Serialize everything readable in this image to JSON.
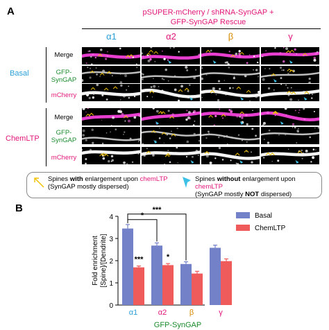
{
  "panel_a": {
    "letter": "A",
    "title_line1": "pSUPER-mCherry / shRNA-SynGAP +",
    "title_line2": "GFP-SynGAP Rescue",
    "isoforms": [
      "α1",
      "α2",
      "β",
      "γ"
    ],
    "groups": [
      {
        "label": "Basal",
        "rows": [
          "Merge",
          "GFP-\nSynGAP",
          "mCherry"
        ]
      },
      {
        "label": "ChemLTP",
        "rows": [
          "Merge",
          "GFP-\nSynGAP",
          "mCherry"
        ]
      }
    ],
    "row_labels": {
      "merge": "Merge",
      "gfp_line1": "GFP-",
      "gfp_line2": "SynGAP",
      "mcherry": "mCherry"
    },
    "legend": {
      "left_pre": "Spines ",
      "left_bold": "with",
      "left_mid": " enlargement upon ",
      "left_colored": "chemLTP",
      "left_line2": "(SynGAP mostly dispersed)",
      "right_pre": "Spines ",
      "right_bold": "without",
      "right_mid": " enlargement upon ",
      "right_colored": "chemLTP",
      "right_line2_pre": "(SynGAP mostly ",
      "right_line2_bold": "NOT",
      "right_line2_post": " dispersed)"
    },
    "colors": {
      "magenta": "#e2167a",
      "green": "#1a8a2e",
      "cyan": "#2a9fd6",
      "arrow_yellow": "#f2c200"
    }
  },
  "panel_b": {
    "letter": "B",
    "chart_data": {
      "type": "bar",
      "categories": [
        "α1",
        "α2",
        "β",
        "γ"
      ],
      "series": [
        {
          "name": "Basal",
          "color": "#7382c8",
          "values": [
            3.45,
            2.68,
            1.85,
            2.58
          ],
          "errors": [
            0.18,
            0.12,
            0.1,
            0.12
          ]
        },
        {
          "name": "ChemLTP",
          "color": "#ef5b5b",
          "values": [
            1.7,
            1.8,
            1.42,
            1.98
          ],
          "errors": [
            0.06,
            0.07,
            0.1,
            0.1
          ]
        }
      ],
      "ylabel_line1": "Fold enrichment",
      "ylabel_line2": "[Spine]/[Dendrite]",
      "xlabel": "GFP-SynGAP",
      "ylim": [
        0,
        4
      ],
      "yticks": [
        "0",
        "1",
        "2",
        "3",
        "4"
      ],
      "legend_position": "top-right",
      "significance": {
        "within": [
          {
            "category": 0,
            "label": "***"
          },
          {
            "category": 1,
            "label": "*"
          }
        ],
        "between": [
          {
            "from": 0,
            "to": 1,
            "label": "*"
          },
          {
            "from": 0,
            "to": 2,
            "label": "***"
          }
        ]
      }
    }
  }
}
